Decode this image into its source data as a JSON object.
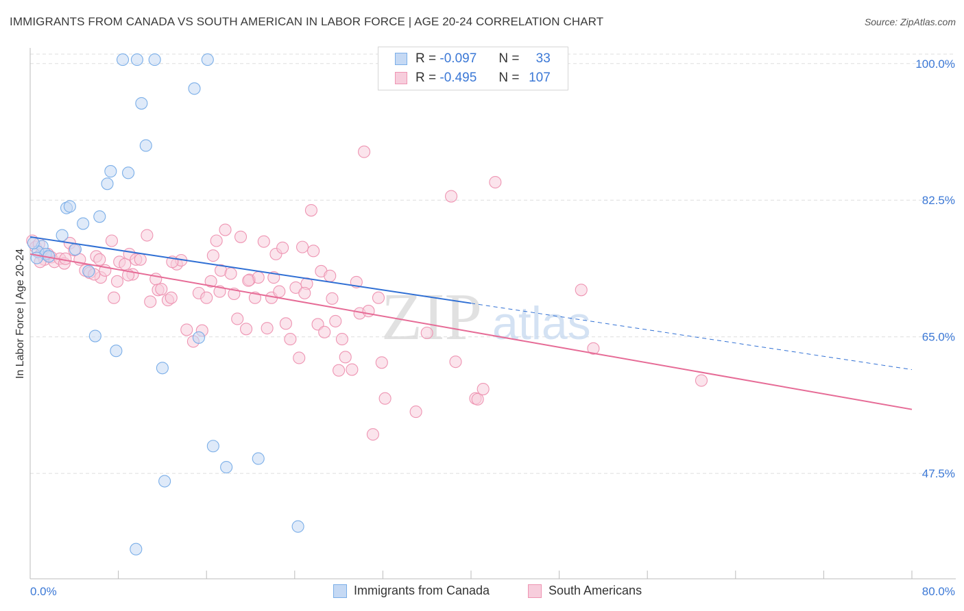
{
  "header": {
    "title": "IMMIGRANTS FROM CANADA VS SOUTH AMERICAN IN LABOR FORCE | AGE 20-24 CORRELATION CHART",
    "source": "Source: ZipAtlas.com"
  },
  "watermark": {
    "zip": "ZIP",
    "atlas": "atlas"
  },
  "colors": {
    "blue": "#7aaee8",
    "blue_fill": "#c5d9f4",
    "blue_line": "#2f6fd4",
    "pink": "#ee94b2",
    "pink_fill": "#f7cddc",
    "pink_line": "#e66b96",
    "tick_text": "#3b78d6",
    "grid": "#dddddd"
  },
  "legend": {
    "r_label": "R =",
    "n_label": "N =",
    "rows": [
      {
        "r": "-0.097",
        "n": "33"
      },
      {
        "r": "-0.495",
        "n": "107"
      }
    ]
  },
  "chart_data": {
    "type": "scatter",
    "xlabel": "",
    "ylabel": "In Labor Force | Age 20-24",
    "xlim": [
      0,
      80
    ],
    "ylim": [
      34,
      102
    ],
    "x_tick_labels": [
      "0.0%",
      "80.0%"
    ],
    "y_ticks": [
      47.5,
      65.0,
      82.5,
      100.0
    ],
    "y_tick_labels": [
      "47.5%",
      "65.0%",
      "82.5%",
      "100.0%"
    ],
    "series": [
      {
        "name": "Immigrants from Canada",
        "r": -0.097,
        "n": 33,
        "trend": {
          "x0": 0,
          "y0": 77.8,
          "x1": 40,
          "y1": 69.3,
          "dash_to_x": 80,
          "dash_to_y": 60.8
        },
        "points": [
          [
            8.4,
            100.5
          ],
          [
            9.7,
            100.5
          ],
          [
            11.3,
            100.5
          ],
          [
            16.1,
            100.5
          ],
          [
            14.9,
            96.8
          ],
          [
            10.1,
            94.9
          ],
          [
            10.5,
            89.5
          ],
          [
            7.3,
            86.2
          ],
          [
            8.9,
            86.0
          ],
          [
            7.0,
            84.6
          ],
          [
            3.3,
            81.5
          ],
          [
            3.6,
            81.7
          ],
          [
            6.3,
            80.4
          ],
          [
            4.8,
            79.5
          ],
          [
            2.9,
            78.0
          ],
          [
            4.1,
            76.2
          ],
          [
            1.1,
            76.6
          ],
          [
            0.7,
            75.9
          ],
          [
            1.4,
            75.6
          ],
          [
            1.7,
            75.3
          ],
          [
            0.6,
            75.1
          ],
          [
            0.3,
            77.0
          ],
          [
            5.3,
            73.4
          ],
          [
            5.9,
            65.1
          ],
          [
            7.8,
            63.2
          ],
          [
            15.3,
            64.9
          ],
          [
            12.0,
            61.0
          ],
          [
            16.6,
            51.0
          ],
          [
            17.8,
            48.3
          ],
          [
            20.7,
            49.4
          ],
          [
            12.2,
            46.5
          ],
          [
            24.3,
            40.7
          ],
          [
            9.6,
            37.8
          ]
        ]
      },
      {
        "name": "South Americans",
        "r": -0.495,
        "n": 107,
        "trend": {
          "x0": 0,
          "y0": 75.6,
          "x1": 80,
          "y1": 55.7
        },
        "points": [
          [
            0.2,
            77.3
          ],
          [
            0.5,
            76.5
          ],
          [
            0.8,
            76.9
          ],
          [
            1.0,
            75.6
          ],
          [
            1.3,
            74.9
          ],
          [
            1.6,
            75.6
          ],
          [
            1.9,
            75.2
          ],
          [
            2.2,
            74.6
          ],
          [
            2.7,
            75.0
          ],
          [
            3.1,
            74.4
          ],
          [
            3.6,
            77.0
          ],
          [
            4.0,
            76.1
          ],
          [
            4.5,
            74.9
          ],
          [
            5.0,
            73.5
          ],
          [
            5.4,
            73.2
          ],
          [
            0.9,
            74.6
          ],
          [
            6.0,
            75.3
          ],
          [
            6.3,
            74.9
          ],
          [
            6.4,
            72.6
          ],
          [
            6.8,
            73.5
          ],
          [
            7.4,
            77.3
          ],
          [
            7.6,
            70.0
          ],
          [
            7.9,
            72.1
          ],
          [
            8.1,
            74.6
          ],
          [
            8.6,
            74.3
          ],
          [
            9.0,
            75.6
          ],
          [
            9.3,
            73.0
          ],
          [
            9.6,
            74.9
          ],
          [
            10.0,
            74.9
          ],
          [
            10.6,
            78.0
          ],
          [
            10.9,
            69.5
          ],
          [
            11.4,
            72.4
          ],
          [
            11.6,
            71.0
          ],
          [
            11.9,
            71.1
          ],
          [
            12.5,
            69.7
          ],
          [
            12.8,
            70.0
          ],
          [
            13.3,
            74.3
          ],
          [
            13.7,
            74.8
          ],
          [
            14.2,
            65.9
          ],
          [
            14.8,
            64.4
          ],
          [
            15.3,
            70.6
          ],
          [
            15.6,
            65.8
          ],
          [
            16.0,
            70.0
          ],
          [
            16.4,
            72.1
          ],
          [
            16.6,
            75.4
          ],
          [
            16.9,
            77.3
          ],
          [
            17.3,
            73.5
          ],
          [
            17.7,
            78.7
          ],
          [
            18.2,
            73.1
          ],
          [
            18.5,
            70.5
          ],
          [
            18.8,
            67.3
          ],
          [
            19.1,
            77.8
          ],
          [
            19.6,
            66.0
          ],
          [
            19.9,
            72.3
          ],
          [
            20.4,
            70.0
          ],
          [
            20.7,
            72.6
          ],
          [
            21.2,
            77.2
          ],
          [
            21.5,
            66.1
          ],
          [
            21.9,
            70.0
          ],
          [
            22.3,
            75.6
          ],
          [
            22.6,
            70.8
          ],
          [
            22.9,
            76.4
          ],
          [
            23.2,
            66.7
          ],
          [
            23.6,
            64.7
          ],
          [
            24.1,
            71.3
          ],
          [
            24.4,
            62.3
          ],
          [
            24.7,
            76.5
          ],
          [
            25.1,
            71.8
          ],
          [
            25.5,
            81.2
          ],
          [
            25.7,
            76.0
          ],
          [
            26.1,
            66.6
          ],
          [
            26.4,
            73.4
          ],
          [
            26.7,
            65.6
          ],
          [
            27.2,
            72.8
          ],
          [
            27.7,
            67.0
          ],
          [
            28.0,
            60.7
          ],
          [
            28.3,
            64.7
          ],
          [
            28.6,
            62.4
          ],
          [
            29.2,
            60.8
          ],
          [
            29.6,
            72.0
          ],
          [
            29.9,
            68.0
          ],
          [
            30.3,
            88.7
          ],
          [
            30.7,
            68.3
          ],
          [
            31.1,
            52.5
          ],
          [
            31.6,
            70.0
          ],
          [
            31.9,
            61.7
          ],
          [
            32.2,
            57.1
          ],
          [
            35.0,
            55.4
          ],
          [
            36.0,
            65.5
          ],
          [
            38.2,
            83.0
          ],
          [
            38.6,
            61.8
          ],
          [
            40.4,
            57.1
          ],
          [
            40.6,
            57.0
          ],
          [
            41.1,
            58.3
          ],
          [
            42.2,
            84.8
          ],
          [
            50.0,
            71.0
          ],
          [
            51.1,
            63.5
          ],
          [
            60.9,
            59.4
          ],
          [
            3.2,
            75.0
          ],
          [
            5.8,
            73.0
          ],
          [
            8.9,
            72.9
          ],
          [
            12.9,
            74.6
          ],
          [
            17.2,
            70.8
          ],
          [
            19.8,
            72.2
          ],
          [
            22.1,
            72.6
          ],
          [
            24.9,
            70.6
          ],
          [
            27.4,
            69.9
          ]
        ]
      }
    ]
  },
  "bottom_legend": [
    "Immigrants from Canada",
    "South Americans"
  ]
}
